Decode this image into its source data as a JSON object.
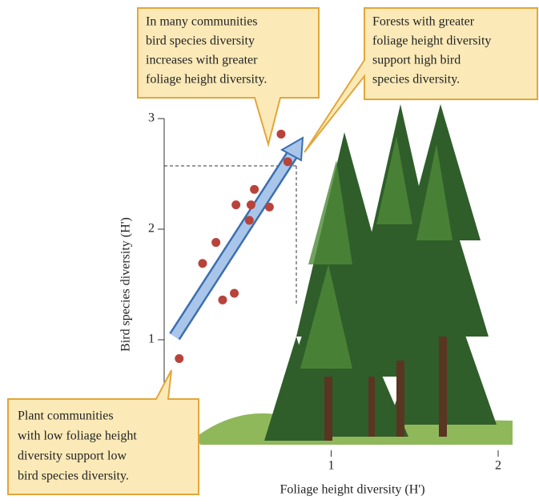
{
  "chart_data": {
    "type": "scatter",
    "x_label": "Foliage height diversity (H')",
    "y_label": "Bird species diversity (H')",
    "x": [
      0.09,
      0.35,
      0.42,
      0.23,
      0.31,
      0.43,
      0.51,
      0.52,
      0.54,
      0.63,
      0.7,
      0.74
    ],
    "values": [
      0.83,
      1.36,
      1.42,
      1.69,
      1.88,
      2.22,
      2.08,
      2.22,
      2.36,
      2.2,
      2.86,
      2.61
    ],
    "color": "#b8433b",
    "xlim": [
      0,
      2
    ],
    "ylim": [
      0,
      3
    ],
    "xticks": [
      1,
      2
    ],
    "yticks": [
      1,
      2,
      3
    ],
    "annotations": [
      [
        "In many communities",
        "bird species diversity",
        "increases with greater",
        "foliage height diversity."
      ],
      [
        "Forests with greater",
        "foliage height diversity",
        "support high bird",
        "species diversity."
      ],
      [
        "Plant communities",
        "with low foliage height",
        "diversity support low",
        "bird species diversity."
      ]
    ]
  }
}
